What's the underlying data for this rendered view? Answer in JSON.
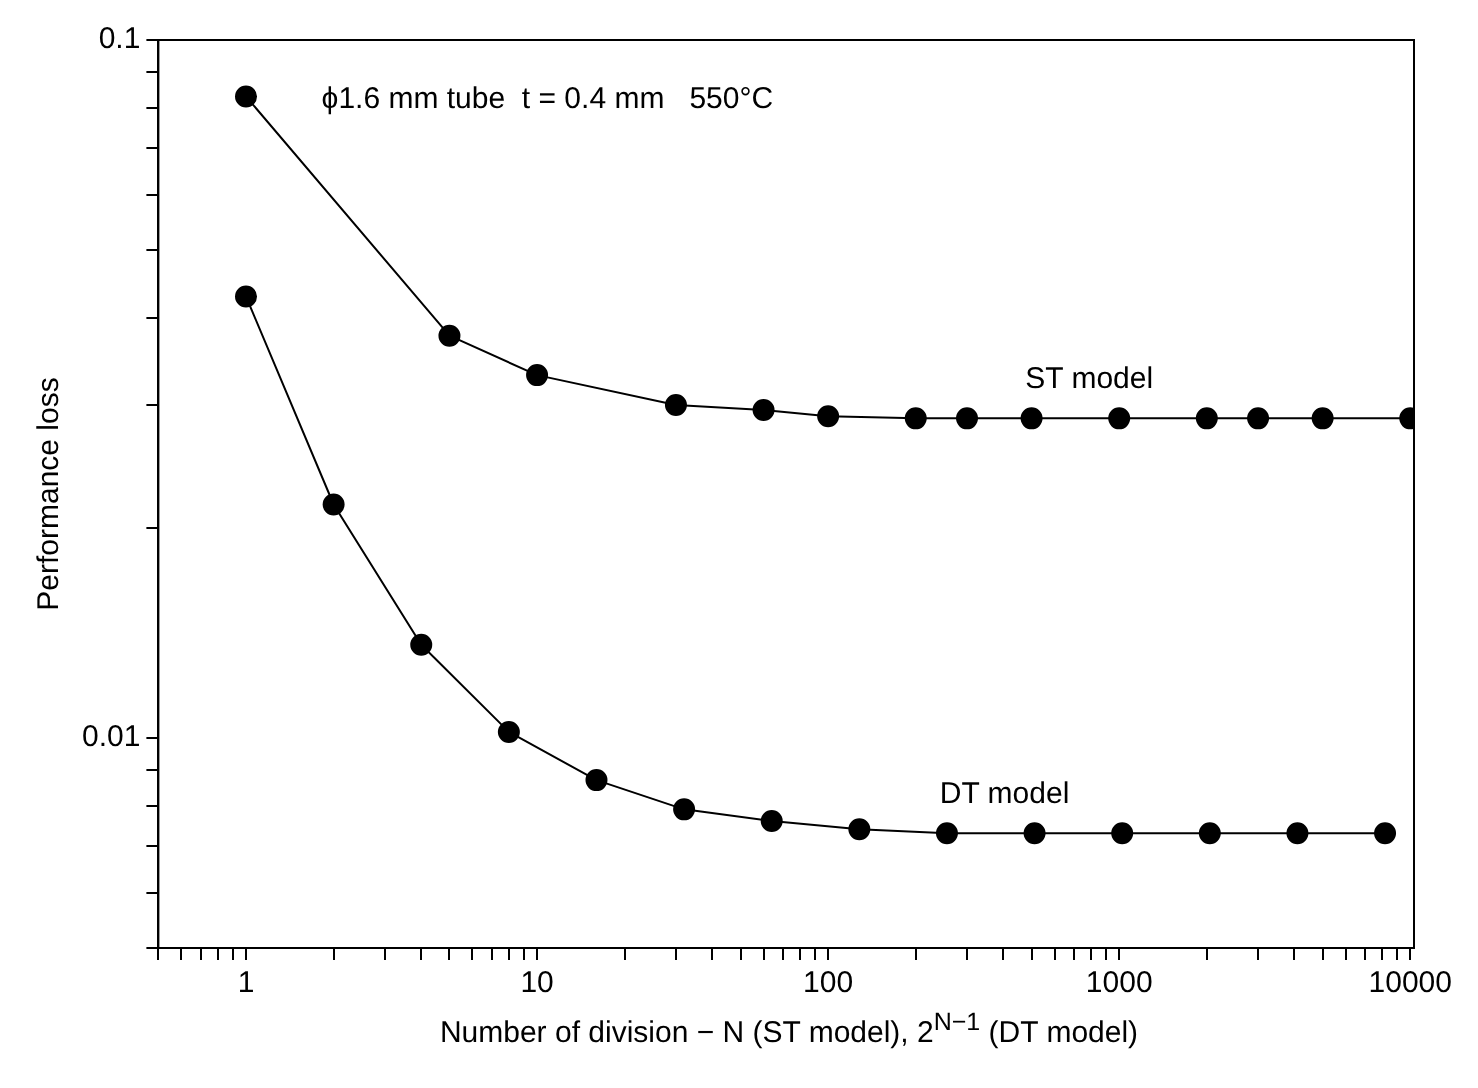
{
  "chart_data": {
    "type": "line",
    "xlabel": "Number of division − N (ST model), 2$^{N−1}$ (DT model)",
    "ylabel": "Performance loss",
    "annotations": [
      "ϕ1.6 mm tube  t = 0.4 mm   550°C"
    ],
    "log": "xy",
    "grid": false,
    "legend": false,
    "marker": "circle",
    "line_style": "solid",
    "xlim": [
      0.5,
      10300
    ],
    "ylim": [
      0.005,
      0.1
    ],
    "xticks": [
      {
        "value": 0.5,
        "label": null
      },
      {
        "value": 0.6,
        "label": null
      },
      {
        "value": 0.7,
        "label": null
      },
      {
        "value": 0.8,
        "label": null
      },
      {
        "value": 0.9,
        "label": null
      },
      1,
      {
        "value": 2,
        "label": null
      },
      {
        "value": 3,
        "label": null
      },
      {
        "value": 4,
        "label": null
      },
      {
        "value": 5,
        "label": null
      },
      {
        "value": 6,
        "label": null
      },
      {
        "value": 7,
        "label": null
      },
      {
        "value": 8,
        "label": null
      },
      {
        "value": 9,
        "label": null
      },
      10,
      {
        "value": 20,
        "label": null
      },
      {
        "value": 30,
        "label": null
      },
      {
        "value": 40,
        "label": null
      },
      {
        "value": 50,
        "label": null
      },
      {
        "value": 60,
        "label": null
      },
      {
        "value": 70,
        "label": null
      },
      {
        "value": 80,
        "label": null
      },
      {
        "value": 90,
        "label": null
      },
      100,
      {
        "value": 200,
        "label": null
      },
      {
        "value": 300,
        "label": null
      },
      {
        "value": 400,
        "label": null
      },
      {
        "value": 500,
        "label": null
      },
      {
        "value": 600,
        "label": null
      },
      {
        "value": 700,
        "label": null
      },
      {
        "value": 800,
        "label": null
      },
      {
        "value": 900,
        "label": null
      },
      1000,
      {
        "value": 2000,
        "label": null
      },
      {
        "value": 3000,
        "label": null
      },
      {
        "value": 4000,
        "label": null
      },
      {
        "value": 5000,
        "label": null
      },
      {
        "value": 6000,
        "label": null
      },
      {
        "value": 7000,
        "label": null
      },
      {
        "value": 8000,
        "label": null
      },
      {
        "value": 9000,
        "label": null
      },
      10000
    ],
    "yticks": [
      {
        "value": 0.005,
        "label": null
      },
      {
        "value": 0.006,
        "label": null
      },
      {
        "value": 0.007,
        "label": null
      },
      {
        "value": 0.008,
        "label": null
      },
      {
        "value": 0.009,
        "label": null
      },
      0.01,
      {
        "value": 0.02,
        "label": null
      },
      {
        "value": 0.03,
        "label": null
      },
      {
        "value": 0.04,
        "label": null
      },
      {
        "value": 0.05,
        "label": null
      },
      {
        "value": 0.06,
        "label": null
      },
      {
        "value": 0.07,
        "label": null
      },
      {
        "value": 0.08,
        "label": null
      },
      {
        "value": 0.09,
        "label": null
      },
      0.1
    ],
    "series": [
      {
        "name": "ST model",
        "color": "#000000",
        "x": [
          1,
          5,
          10,
          30,
          60,
          100,
          200,
          300,
          500,
          1000,
          2000,
          3000,
          5000,
          10000
        ],
        "values": [
          0.083,
          0.0377,
          0.0331,
          0.03,
          0.0295,
          0.0289,
          0.0287,
          0.0287,
          0.0287,
          0.0287,
          0.0287,
          0.0287,
          0.0287,
          0.0287
        ]
      },
      {
        "name": "DT model",
        "color": "#000000",
        "x": [
          1,
          2,
          4,
          8,
          16,
          32,
          64,
          128,
          256,
          512,
          1024,
          2048,
          4096,
          8192
        ],
        "values": [
          0.0429,
          0.0216,
          0.0136,
          0.0102,
          0.0087,
          0.0079,
          0.0076,
          0.0074,
          0.0073,
          0.0073,
          0.0073,
          0.0073,
          0.0073,
          0.0073
        ]
      }
    ]
  }
}
